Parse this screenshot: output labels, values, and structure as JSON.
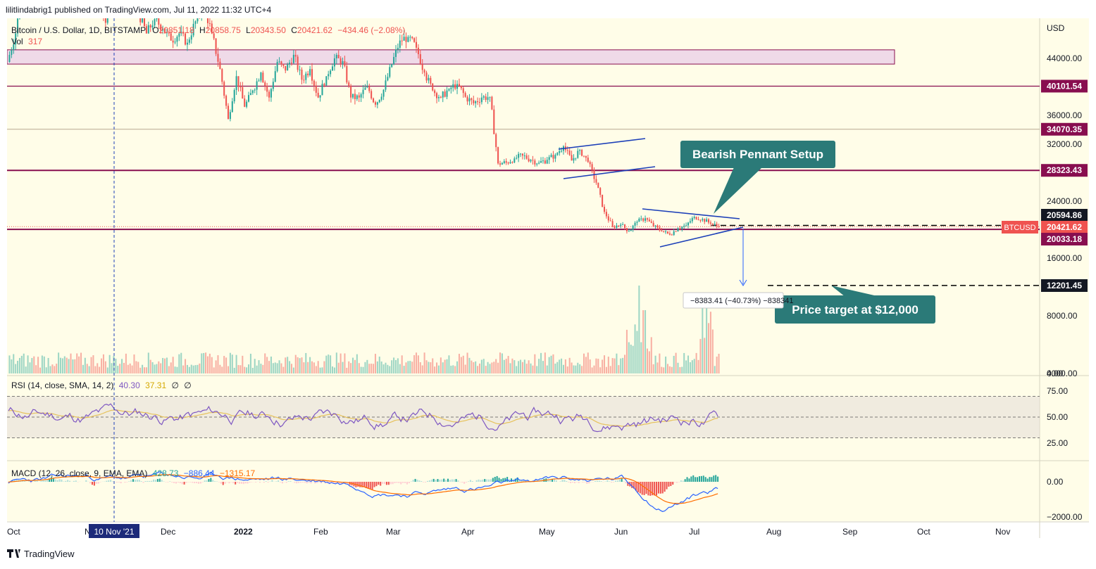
{
  "header": {
    "publisher": "lilitlindabrig1 published on TradingView.com, Jul 11, 2022 11:32 UTC+4",
    "symbol": "Bitcoin / U.S. Dollar, 1D, BITSTAMP",
    "o_label": "O",
    "o_value": "20851.18",
    "h_label": "H",
    "h_value": "20858.75",
    "l_label": "L",
    "l_value": "20343.50",
    "c_label": "C",
    "c_value": "20421.62",
    "change": "−434.46 (−2.08%)",
    "vol_label": "Vol",
    "vol_value": "317"
  },
  "rsi_legend": {
    "label": "RSI (14, close, SMA, 14, 2)",
    "v1": "40.30",
    "v2": "37.31",
    "v3": "∅",
    "v4": "∅"
  },
  "macd_legend": {
    "label": "MACD (12, 26, close, 9, EMA, EMA)",
    "v1": "428.73",
    "v2": "−886.44",
    "v3": "−1315.17"
  },
  "annotations": {
    "pennant_label": "Bearish Pennant Setup",
    "target_label": "Price target at $12,000",
    "measure_label": "−8383.41 (−40.73%) −838341"
  },
  "footer": {
    "brand": "TradingView"
  },
  "colors": {
    "background": "#fffde8",
    "up": "#26a69a",
    "down": "#ef5350",
    "level_line": "#880e4f",
    "zone_fill": "#e1bee7",
    "trend_line": "#1c3fb8",
    "callout": "#2b7a78",
    "rsi": "#7e57c2",
    "rsi_ma": "#e6c25c",
    "macd": "#2962ff",
    "signal": "#ff6d00"
  },
  "chart_data": {
    "type": "candlestick",
    "title": "Bitcoin / U.S. Dollar, 1D, BITSTAMP",
    "x_labels": [
      "Oct",
      "Nov",
      "Dec",
      "2022",
      "Feb",
      "Mar",
      "Apr",
      "May",
      "Jun",
      "Jul",
      "Aug",
      "Sep",
      "Oct",
      "Nov"
    ],
    "highlight_date": "10 Nov '21",
    "y_axis": {
      "currency": "USD",
      "ticks": [
        "44000.00",
        "36000.00",
        "32000.00",
        "24000.00",
        "16000.00",
        "8000.00",
        "4000.00",
        "0.00"
      ]
    },
    "price_labels": {
      "level_40101": "40101.54",
      "level_34070": "34070.35",
      "level_28323": "28323.43",
      "level_20594": "20594.86",
      "symbol_tag": "BTCUSD",
      "current": "20421.62",
      "level_20033": "20033.18",
      "target": "12201.45"
    },
    "levels": [
      40101.54,
      34070.35,
      28323.43,
      20594.86,
      20033.18,
      12201.45
    ],
    "zone": [
      43200,
      45200
    ],
    "rsi_ticks": [
      "75.00",
      "50.00",
      "25.00"
    ],
    "macd_ticks": [
      "0.00",
      "−2000.00"
    ],
    "rsi_band": [
      30,
      70
    ],
    "closes": [
      43500,
      47500,
      55000,
      61500,
      57000,
      63000,
      61000,
      65500,
      63000,
      58000,
      57500,
      55000,
      49000,
      56500,
      57500,
      52000,
      50500,
      47500,
      49500,
      48200,
      46500,
      47500,
      46200,
      49200,
      51500,
      47500,
      42500,
      35500,
      41500,
      37200,
      39500,
      42000,
      38500,
      43500,
      42300,
      44500,
      41000,
      42500,
      38500,
      41500,
      44000,
      43600,
      38500,
      38500,
      40100,
      37500,
      39600,
      43200,
      46500,
      47000,
      45500,
      42000,
      39500,
      38500,
      39700,
      40400,
      38600,
      37700,
      38500,
      38600,
      29300,
      29400,
      30000,
      30400,
      29800,
      29400,
      29800,
      30500,
      31700,
      29700,
      31200,
      29500,
      26600,
      22500,
      20400,
      20700,
      19800,
      21100,
      21600,
      20500,
      19800,
      19300,
      20200,
      20600,
      21800,
      21500,
      20850,
      20421.62
    ],
    "volume_note": "Daily volume bars, peak ~12000 in May 2022"
  }
}
